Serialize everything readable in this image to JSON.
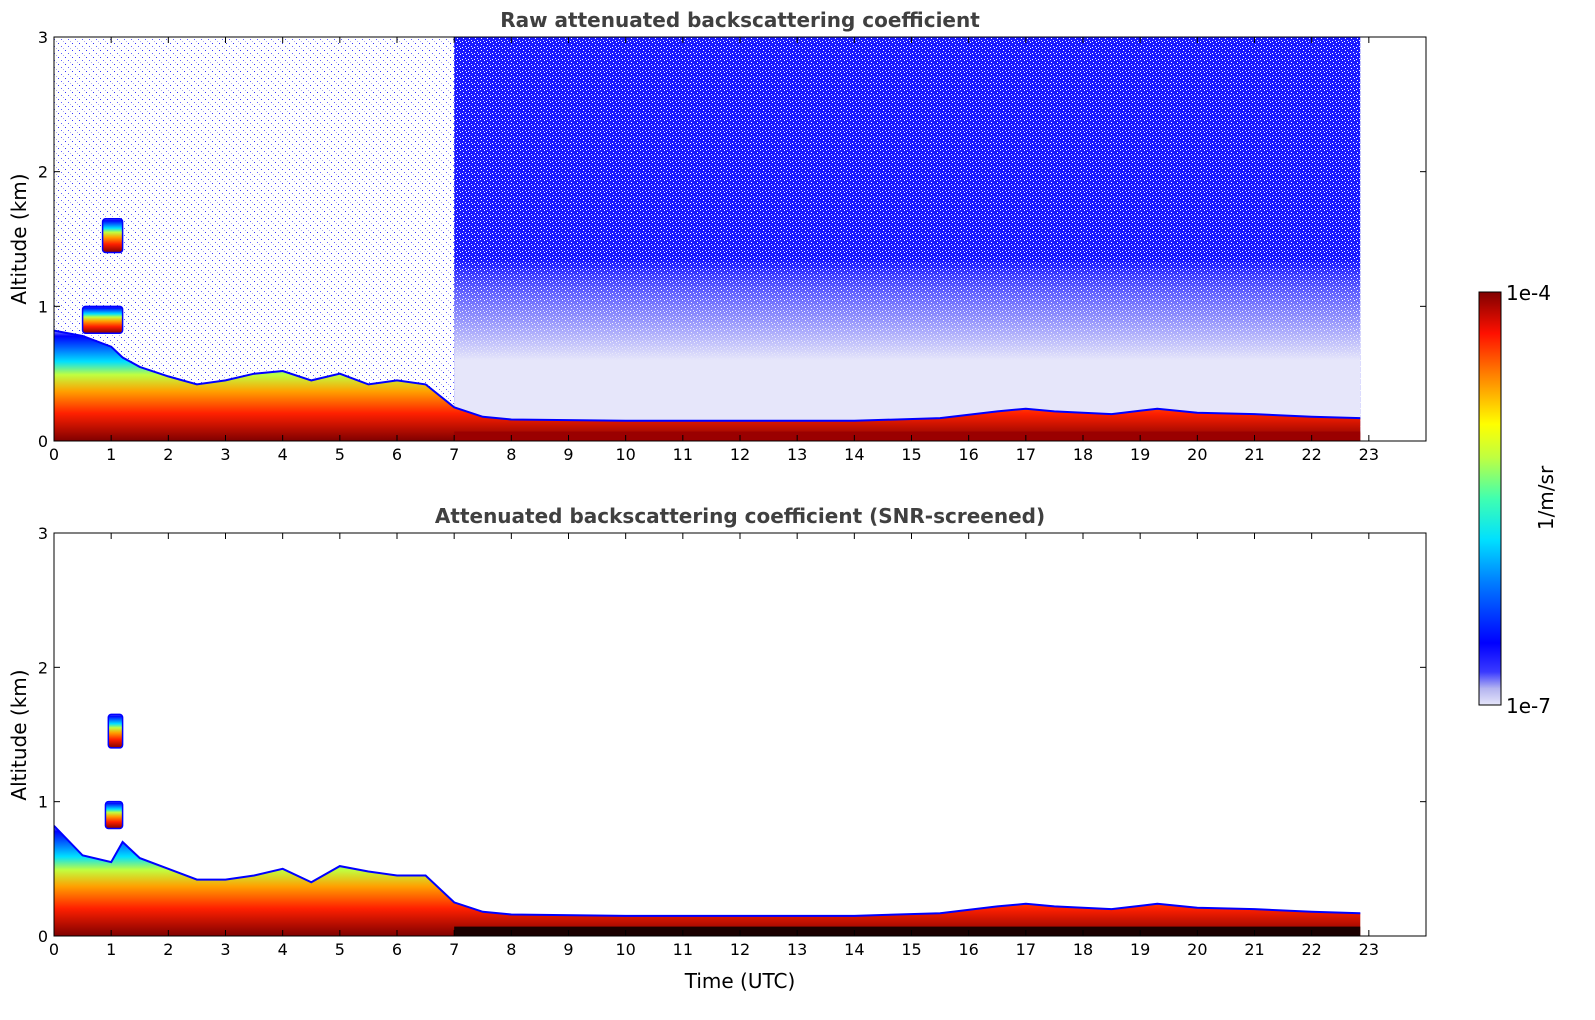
{
  "chart_data": [
    {
      "type": "heatmap",
      "title": "Raw attenuated backscattering coefficient",
      "xlabel": "",
      "ylabel": "Altitude (km)",
      "xlim": [
        0,
        24
      ],
      "ylim": [
        0,
        3
      ],
      "xticks": [
        "0",
        "1",
        "2",
        "3",
        "4",
        "5",
        "6",
        "7",
        "8",
        "9",
        "10",
        "11",
        "12",
        "13",
        "14",
        "15",
        "16",
        "17",
        "18",
        "19",
        "20",
        "21",
        "22",
        "23"
      ],
      "yticks": [
        "0",
        "1",
        "2",
        "3"
      ],
      "data_end_time": 22.85,
      "boundary_layer_top_km": [
        [
          0,
          0.82
        ],
        [
          0.5,
          0.78
        ],
        [
          1,
          0.7
        ],
        [
          1.2,
          0.62
        ],
        [
          1.5,
          0.55
        ],
        [
          2,
          0.48
        ],
        [
          2.5,
          0.42
        ],
        [
          3,
          0.45
        ],
        [
          3.5,
          0.5
        ],
        [
          4,
          0.52
        ],
        [
          4.5,
          0.45
        ],
        [
          5,
          0.5
        ],
        [
          5.5,
          0.42
        ],
        [
          6,
          0.45
        ],
        [
          6.5,
          0.42
        ],
        [
          7,
          0.25
        ],
        [
          7.5,
          0.18
        ],
        [
          8,
          0.16
        ],
        [
          10,
          0.15
        ],
        [
          12,
          0.15
        ],
        [
          14,
          0.15
        ],
        [
          15.5,
          0.17
        ],
        [
          16.5,
          0.22
        ],
        [
          17,
          0.24
        ],
        [
          17.5,
          0.22
        ],
        [
          18.5,
          0.2
        ],
        [
          19.3,
          0.24
        ],
        [
          20,
          0.21
        ],
        [
          21,
          0.2
        ],
        [
          22,
          0.18
        ],
        [
          22.85,
          0.17
        ]
      ],
      "elevated_layers_km": [
        {
          "time": [
            0.85,
            1.2
          ],
          "alt": [
            1.4,
            1.65
          ]
        },
        {
          "time": [
            0.5,
            1.2
          ],
          "alt": [
            0.8,
            1.0
          ]
        }
      ],
      "noise_onset_time": 7.0
    },
    {
      "type": "heatmap",
      "title": "Attenuated backscattering coefficient (SNR-screened)",
      "xlabel": "Time (UTC)",
      "ylabel": "Altitude (km)",
      "xlim": [
        0,
        24
      ],
      "ylim": [
        0,
        3
      ],
      "xticks": [
        "0",
        "1",
        "2",
        "3",
        "4",
        "5",
        "6",
        "7",
        "8",
        "9",
        "10",
        "11",
        "12",
        "13",
        "14",
        "15",
        "16",
        "17",
        "18",
        "19",
        "20",
        "21",
        "22",
        "23"
      ],
      "yticks": [
        "0",
        "1",
        "2",
        "3"
      ],
      "data_end_time": 22.85,
      "boundary_layer_top_km": [
        [
          0,
          0.82
        ],
        [
          0.5,
          0.6
        ],
        [
          1,
          0.55
        ],
        [
          1.2,
          0.7
        ],
        [
          1.5,
          0.58
        ],
        [
          2,
          0.5
        ],
        [
          2.5,
          0.42
        ],
        [
          3,
          0.42
        ],
        [
          3.5,
          0.45
        ],
        [
          4,
          0.5
        ],
        [
          4.5,
          0.4
        ],
        [
          5,
          0.52
        ],
        [
          5.5,
          0.48
        ],
        [
          6,
          0.45
        ],
        [
          6.5,
          0.45
        ],
        [
          7,
          0.25
        ],
        [
          7.5,
          0.18
        ],
        [
          8,
          0.16
        ],
        [
          10,
          0.15
        ],
        [
          12,
          0.15
        ],
        [
          14,
          0.15
        ],
        [
          15.5,
          0.17
        ],
        [
          16.5,
          0.22
        ],
        [
          17,
          0.24
        ],
        [
          17.5,
          0.22
        ],
        [
          18.5,
          0.2
        ],
        [
          19.3,
          0.24
        ],
        [
          20,
          0.21
        ],
        [
          21,
          0.2
        ],
        [
          22,
          0.18
        ],
        [
          22.85,
          0.17
        ]
      ],
      "elevated_layers_km": [
        {
          "time": [
            0.95,
            1.2
          ],
          "alt": [
            1.4,
            1.65
          ]
        },
        {
          "time": [
            0.9,
            1.2
          ],
          "alt": [
            0.8,
            1.0
          ]
        }
      ]
    }
  ],
  "colorbar": {
    "max_label": "1e-4",
    "min_label": "1e-7",
    "unit_label": "1/m/sr",
    "colormap": "jet",
    "low_color": "#e6e6fa"
  }
}
